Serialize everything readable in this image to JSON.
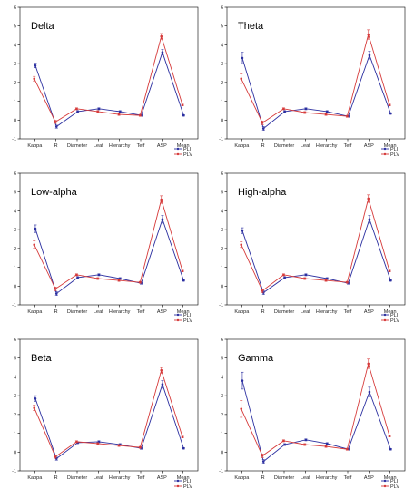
{
  "colors": {
    "pli": "#2b2fa0",
    "plv": "#d63a3a",
    "axis": "#000000"
  },
  "chart_data": [
    {
      "type": "line",
      "title": "Delta",
      "categories": [
        "Kappa",
        "R",
        "Diameter",
        "Leaf",
        "Hierarchy",
        "Teff",
        "ASP",
        "Mean"
      ],
      "ylim": [
        -1,
        6
      ],
      "yticks": [
        -1,
        0,
        1,
        2,
        3,
        4,
        5,
        6
      ],
      "legend_position": "bottom-right",
      "series": [
        {
          "name": "PLI",
          "values": [
            2.9,
            -0.35,
            0.45,
            0.6,
            0.45,
            0.25,
            3.6,
            0.25
          ],
          "errors": [
            0.12,
            0.08,
            0.05,
            0.05,
            0.05,
            0.05,
            0.15,
            0.04
          ]
        },
        {
          "name": "PLV",
          "values": [
            2.2,
            -0.1,
            0.6,
            0.45,
            0.3,
            0.25,
            4.45,
            0.8
          ],
          "errors": [
            0.12,
            0.08,
            0.05,
            0.05,
            0.05,
            0.05,
            0.15,
            0.04
          ]
        }
      ]
    },
    {
      "type": "line",
      "title": "Theta",
      "categories": [
        "Kappa",
        "R",
        "Diameter",
        "Leaf",
        "Hierarchy",
        "Teff",
        "ASP",
        "Mean"
      ],
      "ylim": [
        -1,
        6
      ],
      "yticks": [
        -1,
        0,
        1,
        2,
        3,
        4,
        5,
        6
      ],
      "legend_position": "bottom-right",
      "series": [
        {
          "name": "PLI",
          "values": [
            3.3,
            -0.45,
            0.45,
            0.6,
            0.45,
            0.2,
            3.45,
            0.35
          ],
          "errors": [
            0.3,
            0.1,
            0.05,
            0.05,
            0.05,
            0.05,
            0.2,
            0.04
          ]
        },
        {
          "name": "PLV",
          "values": [
            2.2,
            -0.15,
            0.6,
            0.4,
            0.3,
            0.2,
            4.55,
            0.8
          ],
          "errors": [
            0.25,
            0.1,
            0.05,
            0.05,
            0.05,
            0.05,
            0.25,
            0.04
          ]
        }
      ]
    },
    {
      "type": "line",
      "title": "Low-alpha",
      "categories": [
        "Kappa",
        "R",
        "Diameter",
        "Leaf",
        "Hierarchy",
        "Teff",
        "ASP",
        "Mean"
      ],
      "ylim": [
        -1,
        6
      ],
      "yticks": [
        -1,
        0,
        1,
        2,
        3,
        4,
        5,
        6
      ],
      "legend_position": "bottom-right",
      "series": [
        {
          "name": "PLI",
          "values": [
            3.05,
            -0.4,
            0.45,
            0.6,
            0.4,
            0.15,
            3.55,
            0.3
          ],
          "errors": [
            0.2,
            0.1,
            0.05,
            0.05,
            0.05,
            0.05,
            0.2,
            0.04
          ]
        },
        {
          "name": "PLV",
          "values": [
            2.2,
            -0.15,
            0.6,
            0.4,
            0.3,
            0.2,
            4.6,
            0.8
          ],
          "errors": [
            0.2,
            0.1,
            0.05,
            0.05,
            0.05,
            0.05,
            0.2,
            0.04
          ]
        }
      ]
    },
    {
      "type": "line",
      "title": "High-alpha",
      "categories": [
        "Kappa",
        "R",
        "Diameter",
        "Leaf",
        "Hierarchy",
        "Teff",
        "ASP",
        "Mean"
      ],
      "ylim": [
        -1,
        6
      ],
      "yticks": [
        -1,
        0,
        1,
        2,
        3,
        4,
        5,
        6
      ],
      "legend_position": "bottom-right",
      "series": [
        {
          "name": "PLI",
          "values": [
            2.95,
            -0.35,
            0.45,
            0.6,
            0.4,
            0.15,
            3.55,
            0.3
          ],
          "errors": [
            0.15,
            0.1,
            0.05,
            0.05,
            0.05,
            0.05,
            0.2,
            0.04
          ]
        },
        {
          "name": "PLV",
          "values": [
            2.2,
            -0.25,
            0.6,
            0.4,
            0.3,
            0.2,
            4.65,
            0.8
          ],
          "errors": [
            0.15,
            0.1,
            0.05,
            0.05,
            0.05,
            0.05,
            0.2,
            0.04
          ]
        }
      ]
    },
    {
      "type": "line",
      "title": "Beta",
      "categories": [
        "Kappa",
        "R",
        "Diameter",
        "Leaf",
        "Hierarchy",
        "Teff",
        "ASP",
        "Mean"
      ],
      "ylim": [
        -1,
        6
      ],
      "yticks": [
        -1,
        0,
        1,
        2,
        3,
        4,
        5,
        6
      ],
      "legend_position": "bottom-right",
      "series": [
        {
          "name": "PLI",
          "values": [
            2.85,
            -0.35,
            0.5,
            0.55,
            0.4,
            0.2,
            3.6,
            0.2
          ],
          "errors": [
            0.15,
            0.08,
            0.05,
            0.05,
            0.05,
            0.05,
            0.2,
            0.04
          ]
        },
        {
          "name": "PLV",
          "values": [
            2.35,
            -0.25,
            0.55,
            0.45,
            0.35,
            0.25,
            4.35,
            0.8
          ],
          "errors": [
            0.15,
            0.08,
            0.05,
            0.05,
            0.05,
            0.05,
            0.15,
            0.04
          ]
        }
      ]
    },
    {
      "type": "line",
      "title": "Gamma",
      "categories": [
        "Kappa",
        "R",
        "Diameter",
        "Leaf",
        "Hierarchy",
        "Teff",
        "ASP",
        "Mean"
      ],
      "ylim": [
        -1,
        6
      ],
      "yticks": [
        -1,
        0,
        1,
        2,
        3,
        4,
        5,
        6
      ],
      "legend_position": "bottom-right",
      "series": [
        {
          "name": "PLI",
          "values": [
            3.8,
            -0.5,
            0.4,
            0.65,
            0.45,
            0.15,
            3.2,
            0.15
          ],
          "errors": [
            0.45,
            0.1,
            0.05,
            0.05,
            0.05,
            0.05,
            0.25,
            0.04
          ]
        },
        {
          "name": "PLV",
          "values": [
            2.3,
            -0.2,
            0.6,
            0.4,
            0.3,
            0.15,
            4.7,
            0.85
          ],
          "errors": [
            0.45,
            0.1,
            0.05,
            0.05,
            0.05,
            0.05,
            0.25,
            0.04
          ]
        }
      ]
    }
  ]
}
